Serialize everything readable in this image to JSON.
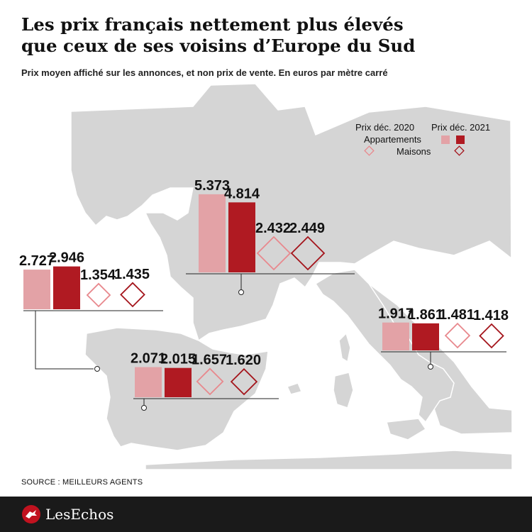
{
  "header": {
    "title_line1": "Les prix français nettement plus élevés",
    "title_line2": "que ceux de ses voisins d’Europe du Sud",
    "subtitle": "Prix moyen affiché sur les annonces, et non prix de vente. En euros par mètre carré"
  },
  "source": "SOURCE : MEILLEURS AGENTS",
  "brand": "LesEchos",
  "colors": {
    "appart_2020": "#e3a2a6",
    "appart_2021": "#b01a22",
    "maisons_2020": "#e8888d",
    "maisons_2021": "#a4141b",
    "map_land": "#d5d5d5"
  },
  "legend": {
    "col_2020": "Prix déc. 2020",
    "col_2021": "Prix déc. 2021",
    "row_appartements": "Appartements",
    "row_maisons": "Maisons"
  },
  "chart_data": {
    "type": "bar",
    "title": "Les prix français nettement plus élevés que ceux de ses voisins d’Europe du Sud",
    "subtitle": "Prix moyen affiché sur les annonces, et non prix de vente. En euros par mètre carré",
    "unit": "€/m²",
    "series": [
      {
        "name": "Appartements – Prix déc. 2020",
        "values": [
          5373,
          2727,
          2071,
          1917
        ]
      },
      {
        "name": "Appartements – Prix déc. 2021",
        "values": [
          4814,
          2946,
          2015,
          1861
        ]
      },
      {
        "name": "Maisons – Prix déc. 2020",
        "values": [
          2432,
          1354,
          1657,
          1481
        ]
      },
      {
        "name": "Maisons – Prix déc. 2021",
        "values": [
          2449,
          1435,
          1620,
          1418
        ]
      }
    ],
    "groups": [
      {
        "apt2020": 5373,
        "apt2021": 4814,
        "mai2020": 2432,
        "mai2021": 2449,
        "labels": {
          "apt2020": "5.373",
          "apt2021": "4.814",
          "mai2020": "2.432",
          "mai2021": "2.449"
        }
      },
      {
        "apt2020": 2727,
        "apt2021": 2946,
        "mai2020": 1354,
        "mai2021": 1435,
        "labels": {
          "apt2020": "2.727",
          "apt2021": "2.946",
          "mai2020": "1.354",
          "mai2021": "1.435"
        }
      },
      {
        "apt2020": 2071,
        "apt2021": 2015,
        "mai2020": 1657,
        "mai2021": 1620,
        "labels": {
          "apt2020": "2.071",
          "apt2021": "2.015",
          "mai2020": "1.657",
          "mai2021": "1.620"
        }
      },
      {
        "apt2020": 1917,
        "apt2021": 1861,
        "mai2020": 1481,
        "mai2021": 1418,
        "labels": {
          "apt2020": "1.917",
          "apt2021": "1.861",
          "mai2020": "1.481",
          "mai2021": "1.418"
        }
      }
    ]
  }
}
